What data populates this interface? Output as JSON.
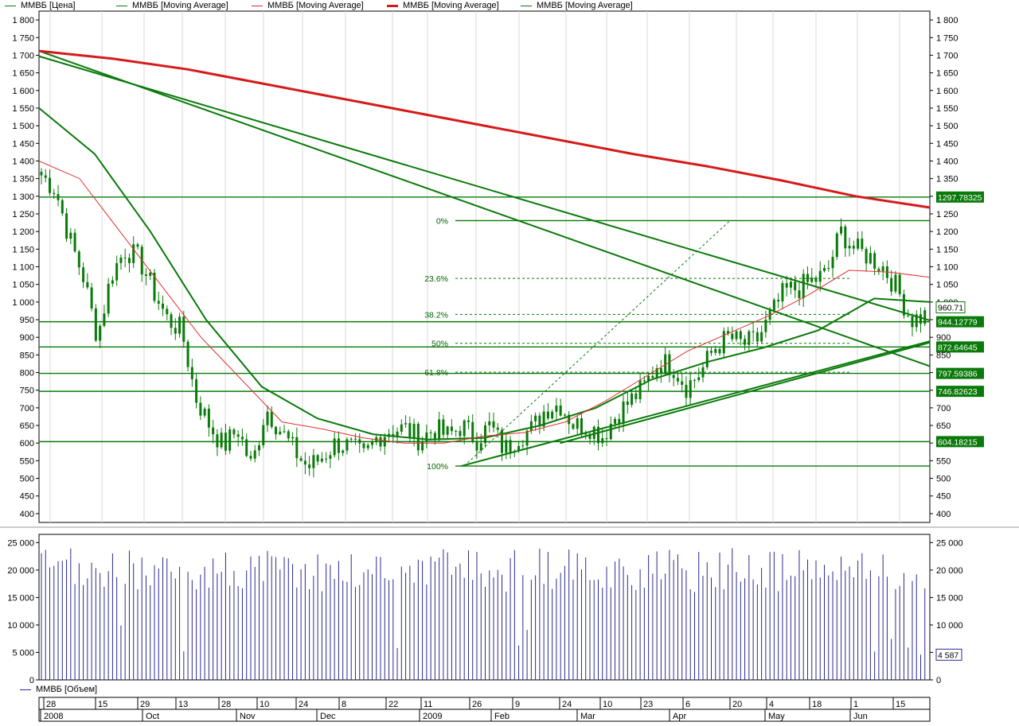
{
  "legend": [
    {
      "label": "ММВБ [Цена]",
      "color": "#0a7a0a",
      "width": 1.5
    },
    {
      "label": "ММВБ [Moving Average]",
      "color": "#0a7a0a",
      "width": 1.5
    },
    {
      "label": "ММВБ [Moving Average]",
      "color": "#d63030",
      "width": 1
    },
    {
      "label": "ММВБ [Moving Average]",
      "color": "#d61a1a",
      "width": 3
    },
    {
      "label": "ММВБ [Moving Average]",
      "color": "#0a7a0a",
      "width": 1.5
    }
  ],
  "volume_legend": "ММВБ [Объем]",
  "colors": {
    "price": "#0a7a0a",
    "ma_red_thin": "#e03030",
    "ma_red_thick": "#d61a1a",
    "volume": "#2b2b8f",
    "axis": "#000000"
  },
  "chart_data": [
    {
      "type": "candlestick",
      "title": "",
      "ylim": [
        375,
        1825
      ],
      "y_ticks": [
        "400",
        "450",
        "500",
        "550",
        "600",
        "650",
        "700",
        "750",
        "800",
        "850",
        "900",
        "950",
        "1 000",
        "1 050",
        "1 100",
        "1 150",
        "1 200",
        "1 250",
        "1 300",
        "1 350",
        "1 400",
        "1 450",
        "1 500",
        "1 550",
        "1 600",
        "1 650",
        "1 700",
        "1 750",
        "1 800"
      ],
      "y_tick_values": [
        400,
        450,
        500,
        550,
        600,
        650,
        700,
        750,
        800,
        850,
        900,
        950,
        1000,
        1050,
        1100,
        1150,
        1200,
        1250,
        1300,
        1350,
        1400,
        1450,
        1500,
        1550,
        1600,
        1650,
        1700,
        1750,
        1800
      ],
      "x_day_labels": [
        "28",
        "15",
        "29",
        "13",
        "28",
        "10",
        "24",
        "8",
        "22",
        "11",
        "26",
        "9",
        "24",
        "10",
        "23",
        "6",
        "20",
        "4",
        "18",
        "1",
        "15"
      ],
      "x_month_labels": [
        "2008",
        "Oct",
        "Nov",
        "Dec",
        "2009",
        "Feb",
        "Mar",
        "Apr",
        "May",
        "Jun"
      ],
      "close_anchors": [
        1360,
        1320,
        1180,
        1070,
        900,
        1080,
        1150,
        1120,
        1030,
        950,
        920,
        730,
        650,
        590,
        640,
        530,
        700,
        640,
        580,
        530,
        560,
        600,
        590,
        560,
        620,
        640,
        640,
        610,
        640,
        620,
        650,
        610,
        650,
        580,
        620,
        640,
        700,
        710,
        650,
        650,
        620,
        680,
        720,
        760,
        830,
        820,
        760,
        800,
        870,
        900,
        880,
        890,
        960,
        1030,
        1040,
        1060,
        1080,
        1200,
        1150,
        1130,
        1100,
        1040,
        950,
        960
      ],
      "horizontal_levels": [
        {
          "value": 1297.78325,
          "label": "1297.78325"
        },
        {
          "value": 944.12779,
          "label": "944.12779"
        },
        {
          "value": 872.64645,
          "label": "872.64645"
        },
        {
          "value": 797.59386,
          "label": "797.59386"
        },
        {
          "value": 746.82623,
          "label": "746.82623"
        },
        {
          "value": 604.18215,
          "label": "604.18215"
        }
      ],
      "last_price_label": "960.71",
      "fibonacci": {
        "high": 1231,
        "low": 535,
        "levels": [
          {
            "label": "0%",
            "value": 1231
          },
          {
            "label": "23.6%",
            "value": 1067
          },
          {
            "label": "38.2%",
            "value": 965
          },
          {
            "label": "50%",
            "value": 883
          },
          {
            "label": "61.8%",
            "value": 801
          },
          {
            "label": "100%",
            "value": 535
          }
        ]
      },
      "trendlines": [
        {
          "from": [
            0,
            1697
          ],
          "to": [
            1,
            948
          ]
        },
        {
          "from": [
            0,
            1712
          ],
          "to": [
            1,
            818
          ]
        },
        {
          "from": [
            0.474,
            535
          ],
          "to": [
            1,
            889
          ]
        },
        {
          "from": [
            0.585,
            600
          ],
          "to": [
            1,
            885
          ]
        }
      ],
      "series": [
        {
          "name": "ММВБ [Moving Average]",
          "color": "#d61a1a",
          "values": [
            1712,
            1690,
            1660,
            1620,
            1580,
            1540,
            1500,
            1460,
            1420,
            1385,
            1345,
            1300,
            1268
          ]
        },
        {
          "name": "ММВБ [Moving Average]",
          "color": "#0a7a0a",
          "values": [
            1550,
            1420,
            1200,
            950,
            760,
            670,
            625,
            610,
            615,
            650,
            700,
            780,
            830,
            870,
            920,
            1010,
            1000
          ]
        },
        {
          "name": "ММВБ [Moving Average]",
          "color": "#e03030",
          "values": [
            1400,
            1350,
            1200,
            1050,
            900,
            780,
            660,
            640,
            615,
            600,
            600,
            620,
            630,
            660,
            720,
            790,
            860,
            910,
            960,
            1020,
            1090,
            1085,
            1070
          ]
        }
      ]
    },
    {
      "type": "bar",
      "title": "",
      "ylim": [
        0,
        26500
      ],
      "y_ticks": [
        "0",
        "5 000",
        "10 000",
        "15 000",
        "20 000",
        "25 000"
      ],
      "y_tick_values": [
        0,
        5000,
        10000,
        15000,
        20000,
        25000
      ],
      "last_volume_label": "4 587",
      "series": [
        {
          "name": "ММВБ [Объем]",
          "color": "#2b2b8f"
        }
      ]
    }
  ]
}
